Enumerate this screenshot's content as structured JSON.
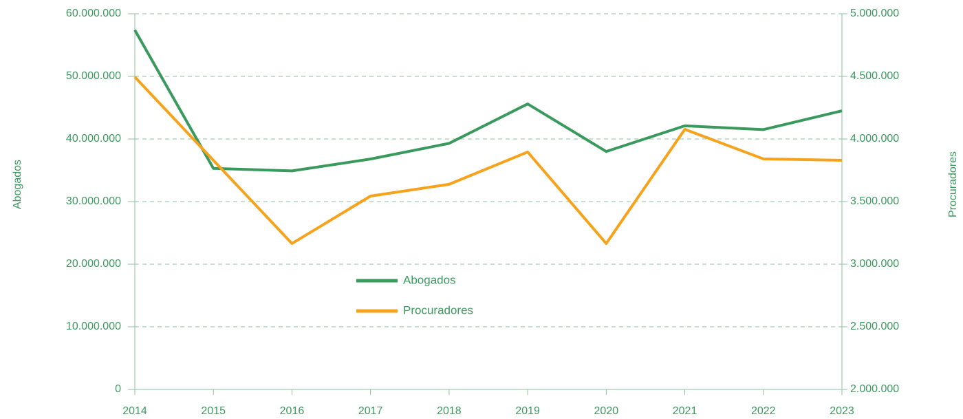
{
  "chart_data": {
    "type": "line",
    "categories": [
      "2014",
      "2015",
      "2016",
      "2017",
      "2018",
      "2019",
      "2020",
      "2021",
      "2022",
      "2023"
    ],
    "y_label": "Abogados",
    "y2_label": "Procuradores",
    "series": [
      {
        "name": "Abogados",
        "color": "#3a9a5e",
        "values": [
          57400000,
          35300000,
          34900000,
          36800000,
          39300000,
          45600000,
          38000000,
          42100000,
          41500000,
          44500000
        ]
      },
      {
        "name": "Procuradores",
        "color": "#f7a21b",
        "axis": "y2",
        "values": [
          4495000,
          3830000,
          3165000,
          3544000,
          3638000,
          3896000,
          3165000,
          4077000,
          3841000,
          3830000
        ]
      }
    ],
    "ylim": [
      0,
      60000000
    ],
    "yticks": [
      0,
      {
        "value": 10000000,
        "label": "10.000.000"
      },
      {
        "value": 20000000,
        "label": "20.000.000"
      },
      {
        "value": 30000000,
        "label": "30.000.000"
      },
      {
        "value": 40000000,
        "label": "40.000.000"
      },
      {
        "value": 50000000,
        "label": "50.000.000"
      },
      {
        "value": 60000000,
        "label": "60.000.000"
      }
    ],
    "y2lim": [
      2000000,
      5000000
    ],
    "y2ticks": [
      {
        "value": 2000000,
        "label": "2.000.000"
      },
      {
        "value": 2500000,
        "label": "2.500.000"
      },
      {
        "value": 3000000,
        "label": "3.000.000"
      },
      {
        "value": 3500000,
        "label": "3.500.000"
      },
      {
        "value": 4000000,
        "label": "4.000.000"
      },
      {
        "value": 4500000,
        "label": "4.500.000"
      },
      {
        "value": 5000000,
        "label": "5.000.000"
      }
    ],
    "grid": true,
    "legend": "center"
  }
}
